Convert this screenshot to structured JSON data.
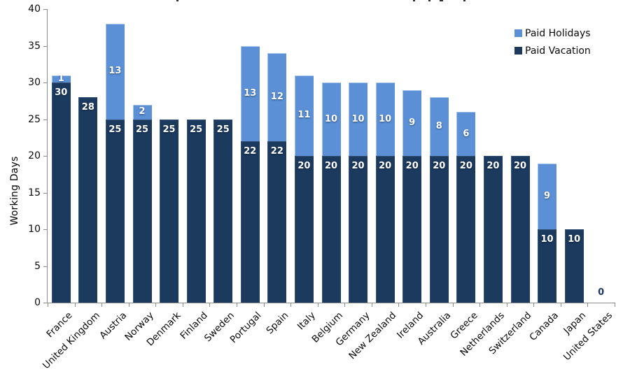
{
  "chart_data": {
    "type": "bar",
    "stacked": true,
    "title_visible": false,
    "ylabel": "Working Days",
    "xlabel": "",
    "ylim": [
      0,
      40
    ],
    "ytick_step": 5,
    "grid": false,
    "legend_position": "top-right",
    "categories": [
      "France",
      "United Kingdom",
      "Austria",
      "Norway",
      "Denmark",
      "Finland",
      "Sweden",
      "Portugal",
      "Spain",
      "Italy",
      "Belgium",
      "Germany",
      "New Zealand",
      "Ireland",
      "Australia",
      "Greece",
      "Netherlands",
      "Switzerland",
      "Canada",
      "Japan",
      "United States"
    ],
    "series": [
      {
        "name": "Paid Vacation",
        "color": "#1c3a5e",
        "values": [
          30,
          28,
          25,
          25,
          25,
          25,
          25,
          22,
          22,
          20,
          20,
          20,
          20,
          20,
          20,
          20,
          20,
          20,
          10,
          10,
          0
        ]
      },
      {
        "name": "Paid Holidays",
        "color": "#5b90d6",
        "values": [
          1,
          0,
          13,
          2,
          0,
          0,
          0,
          13,
          12,
          11,
          10,
          10,
          10,
          9,
          8,
          6,
          0,
          0,
          9,
          0,
          0
        ]
      }
    ],
    "totals": [
      31,
      28,
      38,
      27,
      25,
      25,
      25,
      35,
      34,
      31,
      30,
      30,
      30,
      29,
      28,
      26,
      20,
      20,
      19,
      10,
      0
    ]
  },
  "axis": {
    "ylabel": "Working Days",
    "yticks": [
      "0",
      "5",
      "10",
      "15",
      "20",
      "25",
      "30",
      "35",
      "40"
    ]
  },
  "legend": {
    "items": [
      {
        "label": "Paid Holidays",
        "color": "#5b90d6"
      },
      {
        "label": "Paid Vacation",
        "color": "#1c3a5e"
      }
    ]
  },
  "colors": {
    "paid_vacation": "#1c3a5e",
    "paid_holidays": "#5b90d6",
    "axis_line": "#8b8b8b",
    "axis_text": "#0a0a0a",
    "bar_label": "#ffffff",
    "zero_label": "#1f3864"
  }
}
